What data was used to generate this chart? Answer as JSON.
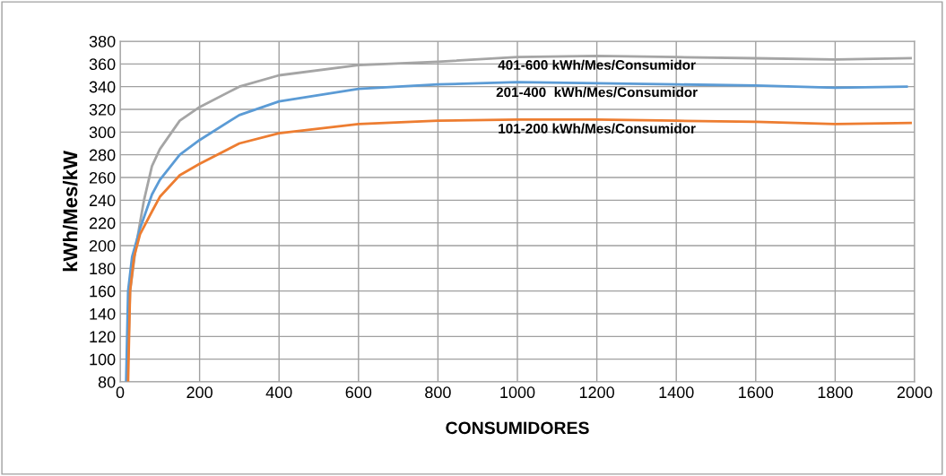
{
  "chart_data": {
    "type": "line",
    "xlabel": "CONSUMIDORES",
    "ylabel": "kWh/Mes/kW",
    "xlim": [
      0,
      2000
    ],
    "xticks": [
      0,
      200,
      400,
      600,
      800,
      1000,
      1200,
      1400,
      1600,
      1800,
      2000
    ],
    "ylim": [
      80,
      380
    ],
    "yticks": [
      80,
      100,
      120,
      140,
      160,
      180,
      200,
      220,
      240,
      260,
      280,
      300,
      320,
      340,
      360,
      380
    ],
    "grid": true,
    "legend": false,
    "marker": "none",
    "line_style": "solid",
    "series": [
      {
        "name": "401-600 kWh/Mes/Consumidor",
        "color": "#a5a5a5",
        "x": [
          18,
          25,
          40,
          60,
          80,
          100,
          150,
          200,
          300,
          400,
          600,
          800,
          1000,
          1200,
          1400,
          1600,
          1800,
          1990
        ],
        "values": [
          80,
          160,
          200,
          240,
          270,
          285,
          310,
          322,
          340,
          350,
          359,
          362,
          366,
          367,
          366,
          365,
          364,
          365
        ]
      },
      {
        "name": "201-400  kWh/Mes/Consumidor",
        "color": "#5b9bd5",
        "x": [
          15,
          20,
          30,
          50,
          80,
          100,
          150,
          200,
          300,
          400,
          600,
          800,
          1000,
          1200,
          1400,
          1600,
          1800,
          1980
        ],
        "values": [
          80,
          160,
          190,
          215,
          245,
          258,
          280,
          293,
          315,
          327,
          338,
          342,
          344,
          343,
          342,
          341,
          339,
          340
        ]
      },
      {
        "name": "101-200 kWh/Mes/Consumidor",
        "color": "#ed7d31",
        "x": [
          20,
          25,
          35,
          50,
          80,
          100,
          150,
          200,
          300,
          400,
          600,
          800,
          1000,
          1200,
          1400,
          1600,
          1800,
          1990
        ],
        "values": [
          80,
          160,
          190,
          210,
          230,
          243,
          262,
          272,
          290,
          299,
          307,
          310,
          311,
          311,
          310,
          309,
          307,
          308
        ]
      }
    ]
  }
}
